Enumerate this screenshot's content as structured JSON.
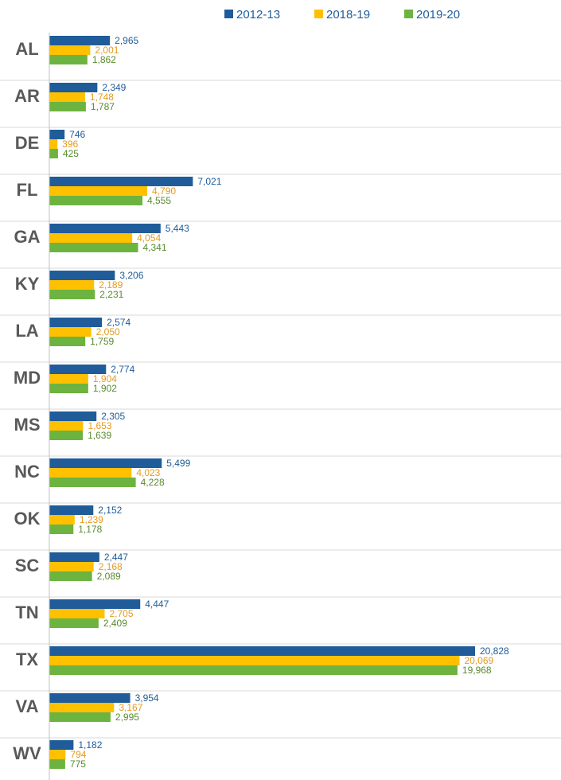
{
  "chart_data": {
    "type": "bar",
    "orientation": "horizontal",
    "title": "",
    "xlabel": "",
    "ylabel": "",
    "xlim": [
      0,
      22000
    ],
    "grid": false,
    "legend_position": "top-right",
    "categories": [
      "AL",
      "AR",
      "DE",
      "FL",
      "GA",
      "KY",
      "LA",
      "MD",
      "MS",
      "NC",
      "OK",
      "SC",
      "TN",
      "TX",
      "VA",
      "WV"
    ],
    "series": [
      {
        "name": "2012-13",
        "color": "#1F5C99",
        "values": [
          2965,
          2349,
          746,
          7021,
          5443,
          3206,
          2574,
          2774,
          2305,
          5499,
          2152,
          2447,
          4447,
          20828,
          3954,
          1182
        ],
        "labels": [
          "2,965",
          "2,349",
          "746",
          "7,021",
          "5,443",
          "3,206",
          "2,574",
          "2,774",
          "2,305",
          "5,499",
          "2,152",
          "2,447",
          "4,447",
          "20,828",
          "3,954",
          "1,182"
        ]
      },
      {
        "name": "2018-19",
        "color": "#FFC000",
        "label_color": "#E69A1E",
        "values": [
          2001,
          1748,
          396,
          4790,
          4054,
          2189,
          2050,
          1904,
          1653,
          4023,
          1239,
          2168,
          2705,
          20069,
          3167,
          794
        ],
        "labels": [
          "2,001",
          "1,748",
          "396",
          "4,790",
          "4,054",
          "2,189",
          "2,050",
          "1,904",
          "1,653",
          "4,023",
          "1,239",
          "2,168",
          "2,705",
          "20,069",
          "3,167",
          "794"
        ]
      },
      {
        "name": "2019-20",
        "color": "#6DB33F",
        "label_color": "#5A8A2E",
        "values": [
          1862,
          1787,
          425,
          4555,
          4341,
          2231,
          1759,
          1902,
          1639,
          4228,
          1178,
          2089,
          2409,
          19968,
          2995,
          775
        ],
        "labels": [
          "1,862",
          "1,787",
          "425",
          "4,555",
          "4,341",
          "2,231",
          "1,759",
          "1,902",
          "1,639",
          "4,228",
          "1,178",
          "2,089",
          "2,409",
          "19,968",
          "2,995",
          "775"
        ]
      }
    ]
  },
  "colors": {
    "axis": "#BFBFBF",
    "separator": "#D9D9D9",
    "state_label": "#595959",
    "legend_text": "#1F5C99"
  }
}
